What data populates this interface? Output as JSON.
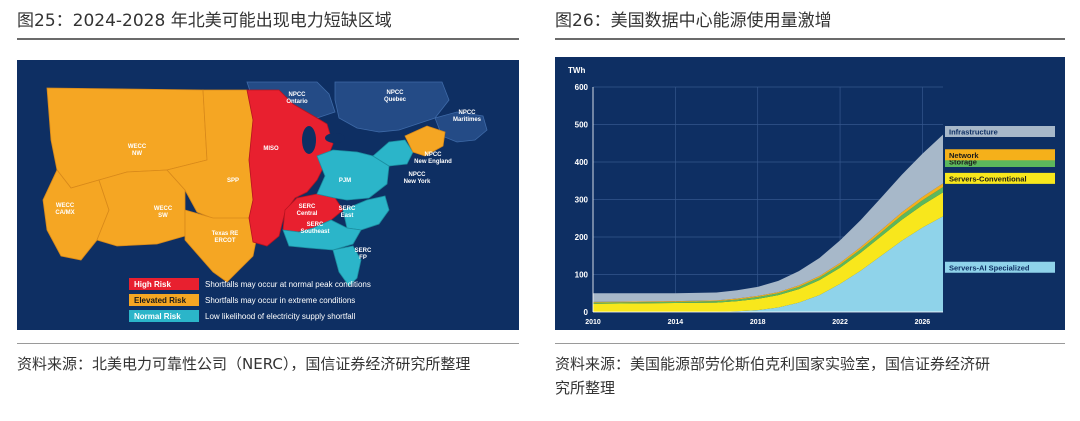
{
  "left_figure": {
    "title": "图25：2024-2028 年北美可能出现电力短缺区域",
    "source": "资料来源：北美电力可靠性公司（NERC），国信证券经济研究所整理",
    "regions": [
      {
        "name": "WECC NW",
        "risk": "elevated"
      },
      {
        "name": "WECC CA/MX",
        "risk": "elevated"
      },
      {
        "name": "WECC SW",
        "risk": "elevated"
      },
      {
        "name": "SPP",
        "risk": "elevated"
      },
      {
        "name": "Texas RE ERCOT",
        "risk": "elevated"
      },
      {
        "name": "MISO",
        "risk": "high"
      },
      {
        "name": "SERC Central",
        "risk": "high"
      },
      {
        "name": "PJM",
        "risk": "normal"
      },
      {
        "name": "SERC East",
        "risk": "normal"
      },
      {
        "name": "SERC Southeast",
        "risk": "normal"
      },
      {
        "name": "SERC FP",
        "risk": "normal"
      },
      {
        "name": "NPCC Ontario",
        "risk": "canada"
      },
      {
        "name": "NPCC Quebec",
        "risk": "canada"
      },
      {
        "name": "NPCC Maritimes",
        "risk": "canada"
      },
      {
        "name": "NPCC New England",
        "risk": "elevated"
      },
      {
        "name": "NPCC New York",
        "risk": "normal"
      }
    ],
    "labels": {
      "wecc_nw_1": "WECC",
      "wecc_nw_2": "NW",
      "wecc_camx_1": "WECC",
      "wecc_camx_2": "CA/MX",
      "wecc_sw_1": "WECC",
      "wecc_sw_2": "SW",
      "spp": "SPP",
      "texas_1": "Texas RE",
      "texas_2": "ERCOT",
      "miso": "MISO",
      "serc_c_1": "SERC",
      "serc_c_2": "Central",
      "pjm": "PJM",
      "serc_e_1": "SERC",
      "serc_e_2": "East",
      "serc_se_1": "SERC",
      "serc_se_2": "Southeast",
      "serc_fp_1": "SERC",
      "serc_fp_2": "FP",
      "npcc_on_1": "NPCC",
      "npcc_on_2": "Ontario",
      "npcc_qc_1": "NPCC",
      "npcc_qc_2": "Quebec",
      "npcc_mar_1": "NPCC",
      "npcc_mar_2": "Maritimes",
      "npcc_ne_1": "NPCC",
      "npcc_ne_2": "New England",
      "npcc_ny_1": "NPCC",
      "npcc_ny_2": "New York"
    },
    "legend": [
      {
        "key": "High Risk",
        "desc": "Shortfalls may occur at normal peak conditions",
        "color": "#e8202f"
      },
      {
        "key": "Elevated Risk",
        "desc": "Shortfalls may occur in extreme conditions",
        "color": "#f5a623"
      },
      {
        "key": "Normal Risk",
        "desc": "Low likelihood of electricity supply shortfall",
        "color": "#2bb5c9"
      }
    ],
    "colors": {
      "background": "#0e2f63",
      "canada": "#244b86",
      "high": "#e8202f",
      "elevated": "#f5a623",
      "normal": "#2bb5c9"
    }
  },
  "right_figure": {
    "title": "图26：美国数据中心能源使用量激增",
    "source_line1": "资料来源：美国能源部劳伦斯伯克利国家实验室，国信证券经济研",
    "source_line2": "究所整理",
    "chart_data": {
      "type": "area",
      "stacked": true,
      "ylabel": "TWh",
      "ylim": [
        0,
        600
      ],
      "yticks": [
        0,
        100,
        200,
        300,
        400,
        500,
        600
      ],
      "xlim": [
        2010,
        2027
      ],
      "xticks": [
        2010,
        2014,
        2018,
        2022,
        2026
      ],
      "grid": true,
      "legend_placement": "right, labels at series",
      "x": [
        2010,
        2012,
        2014,
        2016,
        2017,
        2018,
        2019,
        2020,
        2021,
        2022,
        2023,
        2024,
        2025,
        2026,
        2027
      ],
      "series": [
        {
          "name": "Servers-AI Specialized",
          "color": "#8fd3ea",
          "values": [
            0,
            0,
            0,
            0,
            2,
            5,
            12,
            25,
            45,
            75,
            110,
            150,
            190,
            225,
            255
          ]
        },
        {
          "name": "Servers-Conventional",
          "color": "#f8e71c",
          "values": [
            22,
            23,
            24,
            25,
            27,
            30,
            33,
            36,
            40,
            43,
            48,
            52,
            56,
            60,
            64
          ]
        },
        {
          "name": "Storage",
          "color": "#5cb85c",
          "values": [
            3,
            3,
            3,
            4,
            4,
            5,
            5,
            6,
            7,
            8,
            9,
            10,
            12,
            13,
            14
          ]
        },
        {
          "name": "Network",
          "color": "#f5b01a",
          "values": [
            2,
            2,
            2,
            2,
            3,
            3,
            3,
            4,
            4,
            5,
            6,
            7,
            8,
            9,
            10
          ]
        },
        {
          "name": "Infrastructure",
          "color": "#a7b8c9",
          "values": [
            23,
            22,
            21,
            21,
            22,
            24,
            30,
            38,
            48,
            60,
            72,
            86,
            100,
            115,
            130
          ]
        }
      ]
    },
    "colors": {
      "background": "#0e2f63",
      "grid": "#3a5a8c",
      "axis_text": "#ffffff"
    }
  }
}
